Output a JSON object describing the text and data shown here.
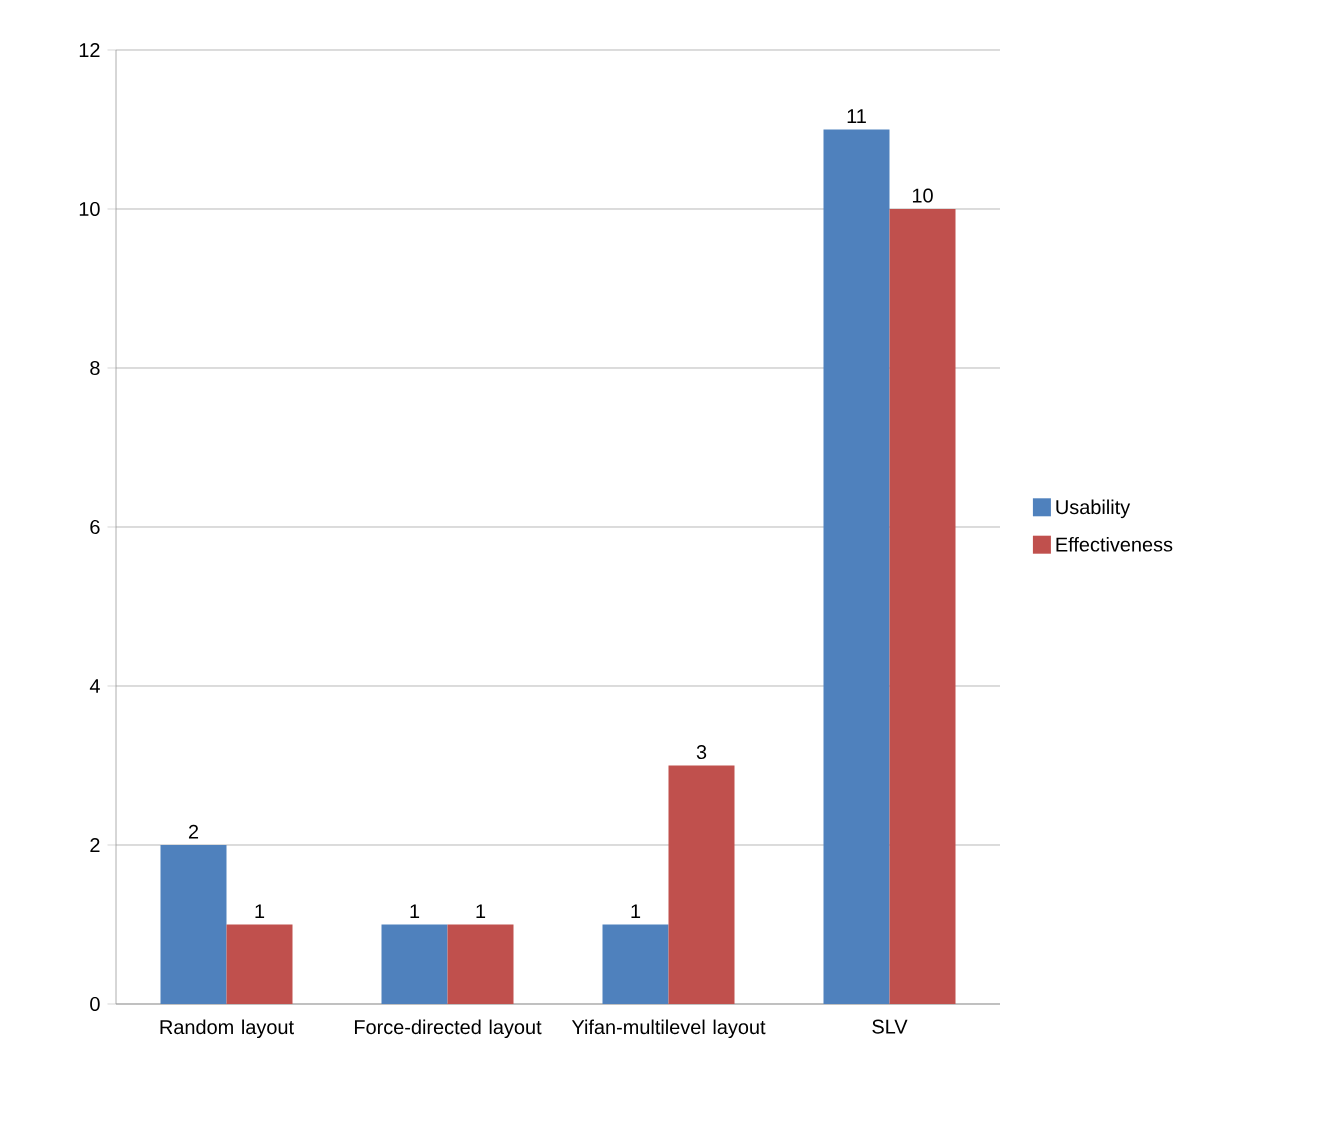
{
  "chart_data": {
    "type": "bar",
    "categories": [
      "Random layout",
      "Force-directed layout",
      "Yifan-multilevel layout",
      "SLV"
    ],
    "series": [
      {
        "name": "Usability",
        "color": "#4f81bd",
        "values": [
          2,
          1,
          1,
          11
        ]
      },
      {
        "name": "Effectiveness",
        "color": "#c0504d",
        "values": [
          1,
          1,
          3,
          10
        ]
      }
    ],
    "ylim": [
      0,
      12
    ],
    "yticks": [
      0,
      2,
      4,
      6,
      8,
      10,
      12
    ],
    "grid": "y",
    "legend": "right",
    "data_labels": true
  }
}
